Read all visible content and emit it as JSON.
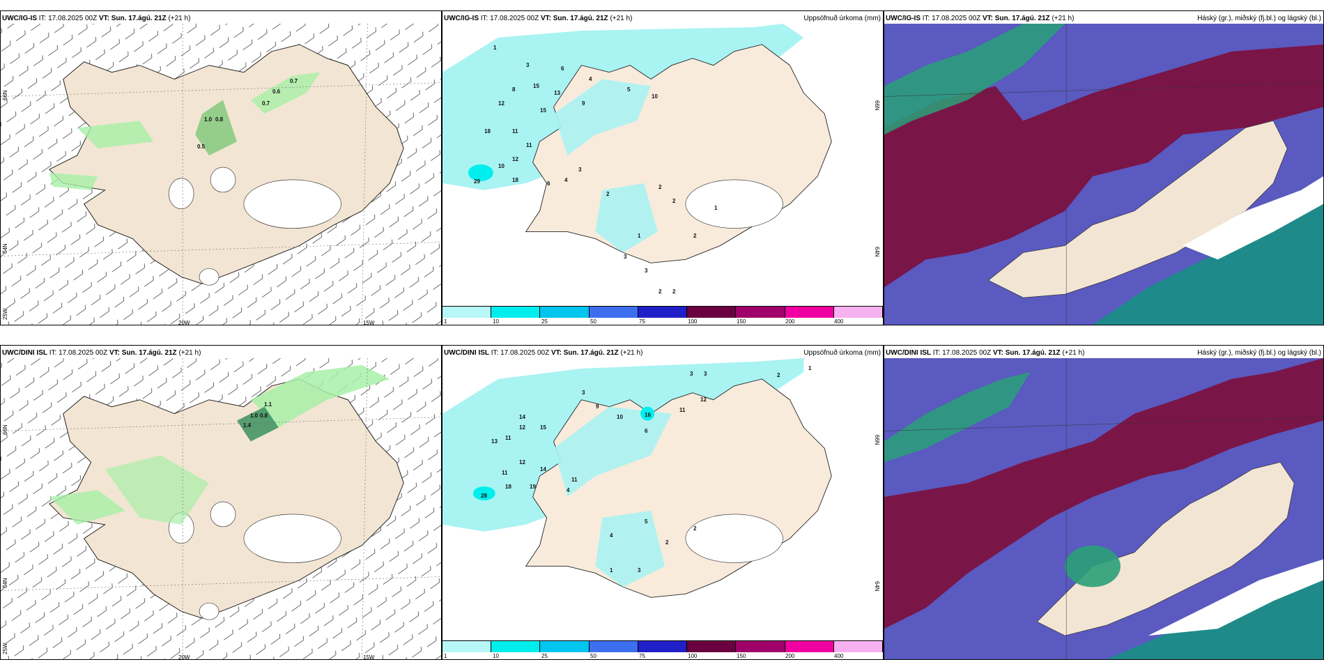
{
  "init_time_label": "IT:",
  "init_time": "17.08.2025 00Z",
  "valid_time_label": "VT:",
  "valid_time": "Sun. 17.ágú. 21Z",
  "lead": "(+21 h)",
  "rows": [
    {
      "model": "UWC/IG-IS"
    },
    {
      "model": "UWC/DINI ISL"
    }
  ],
  "precip_title": "Uppsöfnuð úrkoma (mm)",
  "cloud_title": "Háský (gr.), miðský (fj.bl.) og lágský (bl.)",
  "lat_labels": {
    "north": "66N",
    "south": "64N"
  },
  "lon_labels": {
    "west": "20W",
    "east": "15W",
    "far_west": "25W"
  },
  "colorbar": {
    "ticks": [
      "1",
      "10",
      "25",
      "50",
      "75",
      "100",
      "150",
      "200",
      "400"
    ],
    "colors": [
      "#b7f7f7",
      "#00eeee",
      "#00c5ee",
      "#3e6ef0",
      "#2020c8",
      "#6a0040",
      "#a0006a",
      "#f000a0",
      "#f7b0f0"
    ]
  },
  "colors": {
    "land": "#f3e5d3",
    "glacier": "#ffffff",
    "precip_light": "#a8f0a8",
    "precip_mid": "#6bc46b",
    "precip_dark": "#2e8b57",
    "cloud_high": "#7a1548",
    "cloud_mid": "#5a5ac0",
    "cloud_low": "#1f8a8a",
    "ocean_cloud": "#3c6e8c",
    "cyan_precip": "#a9f3f3"
  },
  "top_precip_labels": [
    "1.0",
    "0.8",
    "0.5",
    "0.6",
    "0.7",
    "0.7"
  ],
  "bottom_precip_labels": [
    "1.1",
    "1.0",
    "0.8",
    "1.4"
  ],
  "top_precip_numbers": [
    "1",
    "3",
    "6",
    "4",
    "5",
    "10",
    "8",
    "15",
    "13",
    "12",
    "9",
    "15",
    "18",
    "11",
    "11",
    "12",
    "10",
    "29",
    "18",
    "6",
    "4",
    "3",
    "2",
    "1",
    "2",
    "2",
    "3",
    "3",
    "2",
    "2",
    "2",
    "1"
  ],
  "bottom_precip_numbers": [
    "3",
    "3",
    "2",
    "1",
    "3",
    "12",
    "9",
    "16",
    "11",
    "10",
    "6",
    "14",
    "15",
    "13",
    "11",
    "12",
    "12",
    "14",
    "11",
    "28",
    "18",
    "19",
    "11",
    "4",
    "5",
    "4",
    "2",
    "2",
    "3",
    "1"
  ]
}
